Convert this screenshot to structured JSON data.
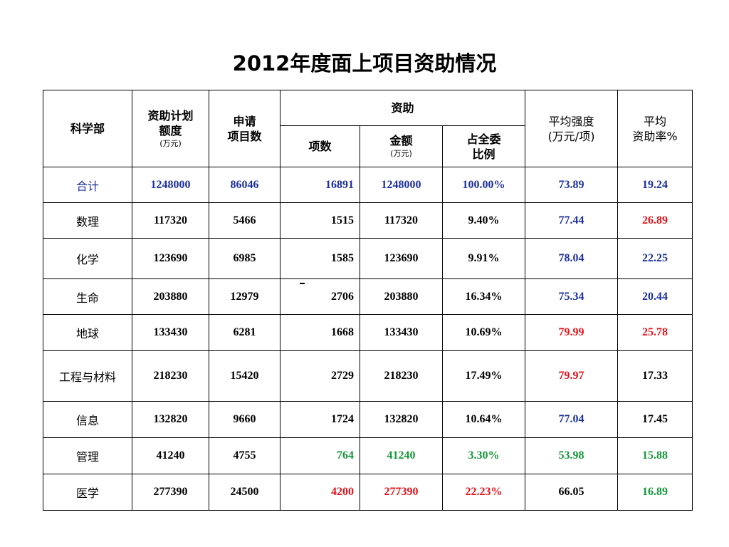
{
  "title": "2012年度面上项目资助情况",
  "header": {
    "dept": "科学部",
    "plan_line1": "资助计划",
    "plan_line2": "额度",
    "plan_unit": "(万元)",
    "apply_line1": "申请",
    "apply_line2": "项目数",
    "funded": "资助",
    "count": "项数",
    "amount": "金额",
    "amount_unit": "(万元)",
    "ratio_line1": "占全委",
    "ratio_line2": "比例",
    "intensity_line1": "平均强度",
    "intensity_line2": "(万元/项)",
    "rate_line1": "平均",
    "rate_line2": "资助率%"
  },
  "colors": {
    "black": "#000000",
    "blue": "#1c2f9c",
    "red": "#e8121a",
    "green": "#14973a"
  },
  "rows": [
    {
      "dept": "合计",
      "plan": "1248000",
      "apply": "86046",
      "count": "16891",
      "amount": "1248000",
      "ratio": "100.00%",
      "intensity": "73.89",
      "rate": "19.24",
      "c": {
        "dept": "#1c2f9c",
        "plan": "#1c2f9c",
        "apply": "#1c2f9c",
        "count": "#1c2f9c",
        "amount": "#1c2f9c",
        "ratio": "#1c2f9c",
        "intensity": "#1c2f9c",
        "rate": "#1c2f9c"
      }
    },
    {
      "dept": "数理",
      "plan": "117320",
      "apply": "5466",
      "count": "1515",
      "amount": "117320",
      "ratio": "9.40%",
      "intensity": "77.44",
      "rate": "26.89",
      "c": {
        "dept": "#000000",
        "plan": "#000000",
        "apply": "#000000",
        "count": "#000000",
        "amount": "#000000",
        "ratio": "#000000",
        "intensity": "#1c2f9c",
        "rate": "#e8121a"
      }
    },
    {
      "dept": "化学",
      "plan": "123690",
      "apply": "6985",
      "count": "1585",
      "amount": "123690",
      "ratio": "9.91%",
      "intensity": "78.04",
      "rate": "22.25",
      "c": {
        "dept": "#000000",
        "plan": "#000000",
        "apply": "#000000",
        "count": "#000000",
        "amount": "#000000",
        "ratio": "#000000",
        "intensity": "#1c2f9c",
        "rate": "#1c2f9c"
      }
    },
    {
      "dept": "生命",
      "plan": "203880",
      "apply": "12979",
      "count": "2706",
      "amount": "203880",
      "ratio": "16.34%",
      "intensity": "75.34",
      "rate": "20.44",
      "c": {
        "dept": "#000000",
        "plan": "#000000",
        "apply": "#000000",
        "count": "#000000",
        "amount": "#000000",
        "ratio": "#000000",
        "intensity": "#1c2f9c",
        "rate": "#1c2f9c"
      }
    },
    {
      "dept": "地球",
      "plan": "133430",
      "apply": "6281",
      "count": "1668",
      "amount": "133430",
      "ratio": "10.69%",
      "intensity": "79.99",
      "rate": "25.78",
      "c": {
        "dept": "#000000",
        "plan": "#000000",
        "apply": "#000000",
        "count": "#000000",
        "amount": "#000000",
        "ratio": "#000000",
        "intensity": "#e8121a",
        "rate": "#e8121a"
      }
    },
    {
      "dept": "工程与材料",
      "plan": "218230",
      "apply": "15420",
      "count": "2729",
      "amount": "218230",
      "ratio": "17.49%",
      "intensity": "79.97",
      "rate": "17.33",
      "c": {
        "dept": "#000000",
        "plan": "#000000",
        "apply": "#000000",
        "count": "#000000",
        "amount": "#000000",
        "ratio": "#000000",
        "intensity": "#e8121a",
        "rate": "#000000"
      }
    },
    {
      "dept": "信息",
      "plan": "132820",
      "apply": "9660",
      "count": "1724",
      "amount": "132820",
      "ratio": "10.64%",
      "intensity": "77.04",
      "rate": "17.45",
      "c": {
        "dept": "#000000",
        "plan": "#000000",
        "apply": "#000000",
        "count": "#000000",
        "amount": "#000000",
        "ratio": "#000000",
        "intensity": "#1c2f9c",
        "rate": "#000000"
      }
    },
    {
      "dept": "管理",
      "plan": "41240",
      "apply": "4755",
      "count": "764",
      "amount": "41240",
      "ratio": "3.30%",
      "intensity": "53.98",
      "rate": "15.88",
      "c": {
        "dept": "#000000",
        "plan": "#000000",
        "apply": "#000000",
        "count": "#14973a",
        "amount": "#14973a",
        "ratio": "#14973a",
        "intensity": "#14973a",
        "rate": "#14973a"
      }
    },
    {
      "dept": "医学",
      "plan": "277390",
      "apply": "24500",
      "count": "4200",
      "amount": "277390",
      "ratio": "22.23%",
      "intensity": "66.05",
      "rate": "16.89",
      "c": {
        "dept": "#000000",
        "plan": "#000000",
        "apply": "#000000",
        "count": "#e8121a",
        "amount": "#e8121a",
        "ratio": "#e8121a",
        "intensity": "#000000",
        "rate": "#14973a"
      }
    }
  ]
}
